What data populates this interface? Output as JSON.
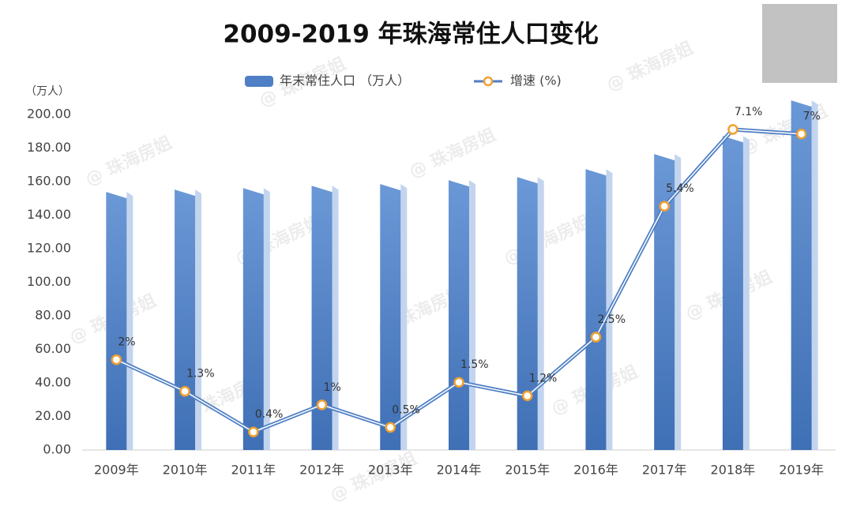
{
  "chart_data": {
    "type": "bar_line",
    "title": "2009-2019 年珠海常住人口变化",
    "y_axis_label": "（万人）",
    "watermark": "@ 珠海房姐",
    "categories": [
      "2009年",
      "2010年",
      "2011年",
      "2012年",
      "2013年",
      "2014年",
      "2015年",
      "2016年",
      "2017年",
      "2018年",
      "2019年"
    ],
    "series": [
      {
        "name": "年末常住人口 （万人）",
        "color": "#4f7fc4",
        "values": [
          153.9,
          155.3,
          156.2,
          157.6,
          158.6,
          160.9,
          162.8,
          167.5,
          176.5,
          187.3,
          208.5
        ]
      },
      {
        "name": "增速 (%)",
        "color": "#f0a030",
        "axis": "y2",
        "values": [
          2,
          1.3,
          0.4,
          1,
          0.5,
          1.5,
          1.2,
          2.5,
          5.4,
          7.1,
          7
        ],
        "value_labels": [
          "2%",
          "1.3%",
          "0.4%",
          "1%",
          "0.5%",
          "1.5%",
          "1.2%",
          "2.5%",
          "5.4%",
          "7.1%",
          "7%"
        ]
      }
    ],
    "ylim": [
      0,
      210
    ],
    "yticks": [
      {
        "value": 0,
        "label": "0.00"
      },
      {
        "value": 20,
        "label": "20.00"
      },
      {
        "value": 40,
        "label": "40.00"
      },
      {
        "value": 60,
        "label": "60.00"
      },
      {
        "value": 80,
        "label": "80.00"
      },
      {
        "value": 100,
        "label": "100.00"
      },
      {
        "value": 120,
        "label": "120.00"
      },
      {
        "value": 140,
        "label": "140.00"
      },
      {
        "value": 160,
        "label": "160.00"
      },
      {
        "value": 180,
        "label": "180.00"
      },
      {
        "value": 200,
        "label": "200.00"
      }
    ],
    "y2lim": [
      0,
      7.8
    ]
  }
}
